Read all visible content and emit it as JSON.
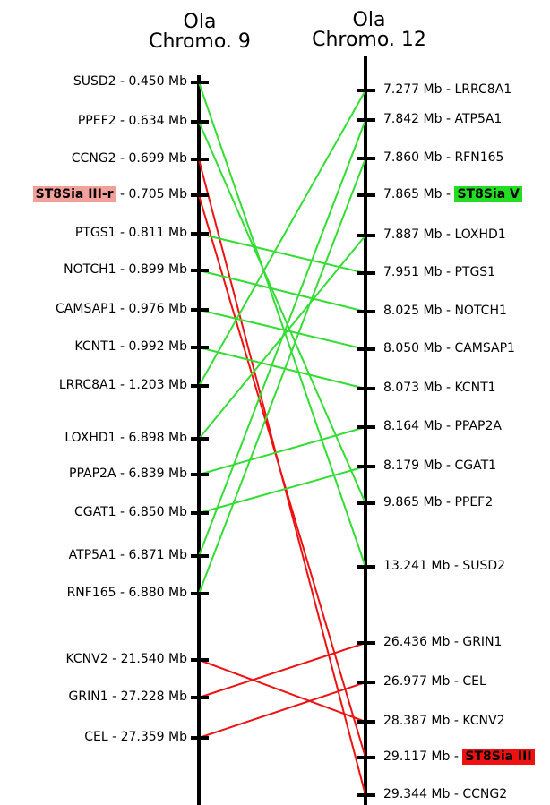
{
  "titles": {
    "left": {
      "line1": "Ola",
      "line2": "Chromo. 9"
    },
    "right": {
      "line1": "Ola",
      "line2": "Chromo. 12"
    }
  },
  "colors": {
    "green": "#33dd33",
    "red": "#ee1111",
    "axis": "#000000"
  },
  "left_markers": [
    {
      "gene": "SUSD2",
      "pos": "0.450 Mb"
    },
    {
      "gene": "PPEF2",
      "pos": "0.634 Mb"
    },
    {
      "gene": "CCNG2",
      "pos": "0.699 Mb"
    },
    {
      "gene": "ST8Sia III-r",
      "pos": "0.705 Mb",
      "highlight": "pink"
    },
    {
      "gene": "PTGS1",
      "pos": "0.811 Mb"
    },
    {
      "gene": "NOTCH1",
      "pos": "0.899 Mb"
    },
    {
      "gene": "CAMSAP1",
      "pos": "0.976 Mb"
    },
    {
      "gene": "KCNT1",
      "pos": "0.992 Mb"
    },
    {
      "gene": "LRRC8A1",
      "pos": "1.203 Mb"
    },
    {
      "gene": "LOXHD1",
      "pos": "6.898 Mb"
    },
    {
      "gene": "PPAP2A",
      "pos": "6.839 Mb"
    },
    {
      "gene": "CGAT1",
      "pos": "6.850 Mb"
    },
    {
      "gene": "ATP5A1",
      "pos": "6.871 Mb"
    },
    {
      "gene": "RNF165",
      "pos": "6.880 Mb"
    },
    {
      "gene": "KCNV2",
      "pos": "21.540 Mb"
    },
    {
      "gene": "GRIN1",
      "pos": "27.228 Mb"
    },
    {
      "gene": "CEL",
      "pos": "27.359 Mb"
    }
  ],
  "right_markers": [
    {
      "gene": "LRRC8A1",
      "pos": "7.277 Mb"
    },
    {
      "gene": "ATP5A1",
      "pos": "7.842 Mb"
    },
    {
      "gene": "RFN165",
      "pos": "7.860 Mb"
    },
    {
      "gene": "ST8Sia V",
      "pos": "7.865 Mb",
      "highlight": "green"
    },
    {
      "gene": "LOXHD1",
      "pos": "7.887 Mb"
    },
    {
      "gene": "PTGS1",
      "pos": "7.951 Mb"
    },
    {
      "gene": "NOTCH1",
      "pos": "8.025 Mb"
    },
    {
      "gene": "CAMSAP1",
      "pos": "8.050 Mb"
    },
    {
      "gene": "KCNT1",
      "pos": "8.073 Mb"
    },
    {
      "gene": "PPAP2A",
      "pos": "8.164 Mb"
    },
    {
      "gene": "CGAT1",
      "pos": "8.179 Mb"
    },
    {
      "gene": "PPEF2",
      "pos": "9.865 Mb"
    },
    {
      "gene": "SUSD2",
      "pos": "13.241 Mb"
    },
    {
      "gene": "GRIN1",
      "pos": "26.436 Mb"
    },
    {
      "gene": "CEL",
      "pos": "26.977 Mb"
    },
    {
      "gene": "KCNV2",
      "pos": "28.387 Mb"
    },
    {
      "gene": "ST8Sia III",
      "pos": "29.117 Mb",
      "highlight": "red"
    },
    {
      "gene": "CCNG2",
      "pos": "29.344 Mb"
    }
  ],
  "links": [
    {
      "from": 0,
      "to": 12,
      "color": "green"
    },
    {
      "from": 1,
      "to": 11,
      "color": "green"
    },
    {
      "from": 2,
      "to": 17,
      "color": "red"
    },
    {
      "from": 3,
      "to": 16,
      "color": "red"
    },
    {
      "from": 4,
      "to": 5,
      "color": "green"
    },
    {
      "from": 5,
      "to": 6,
      "color": "green"
    },
    {
      "from": 6,
      "to": 7,
      "color": "green"
    },
    {
      "from": 7,
      "to": 8,
      "color": "green"
    },
    {
      "from": 8,
      "to": 0,
      "color": "green"
    },
    {
      "from": 9,
      "to": 4,
      "color": "green"
    },
    {
      "from": 10,
      "to": 9,
      "color": "green"
    },
    {
      "from": 11,
      "to": 10,
      "color": "green"
    },
    {
      "from": 12,
      "to": 1,
      "color": "green"
    },
    {
      "from": 13,
      "to": 2,
      "color": "green"
    },
    {
      "from": 14,
      "to": 15,
      "color": "red"
    },
    {
      "from": 15,
      "to": 13,
      "color": "red"
    },
    {
      "from": 16,
      "to": 14,
      "color": "red"
    }
  ]
}
